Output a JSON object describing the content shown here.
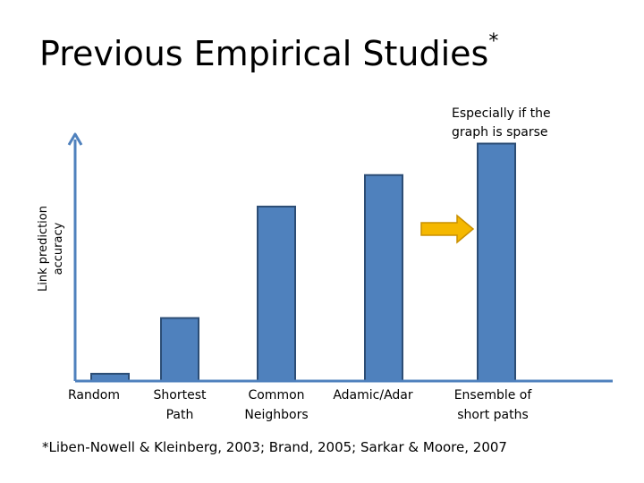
{
  "slide": {
    "title": "Previous Empirical Studies",
    "title_marker": "*",
    "footnote": "*Liben-Nowell & Kleinberg, 2003; Brand, 2005;  Sarkar & Moore, 2007"
  },
  "chart_data": {
    "type": "bar",
    "categories": [
      [
        "Random"
      ],
      [
        "Shortest",
        "Path"
      ],
      [
        "Common",
        "Neighbors"
      ],
      [
        "Adamic/Adar"
      ],
      [
        "Ensemble of",
        "short paths"
      ]
    ],
    "values": [
      0.03,
      0.26,
      0.72,
      0.85,
      0.98
    ],
    "ylim": [
      0,
      1.1
    ],
    "ylabel": [
      "Link prediction",
      "accuracy"
    ],
    "xlabel": "",
    "grid": false,
    "annotation": {
      "text": [
        "Especially if the",
        "graph is sparse"
      ],
      "target_category_index": 4
    },
    "colors": {
      "bar_fill": "#4f81bd",
      "bar_stroke": "#2c4d75",
      "axis": "#4f81bd",
      "arrow": "#f5b800"
    }
  }
}
